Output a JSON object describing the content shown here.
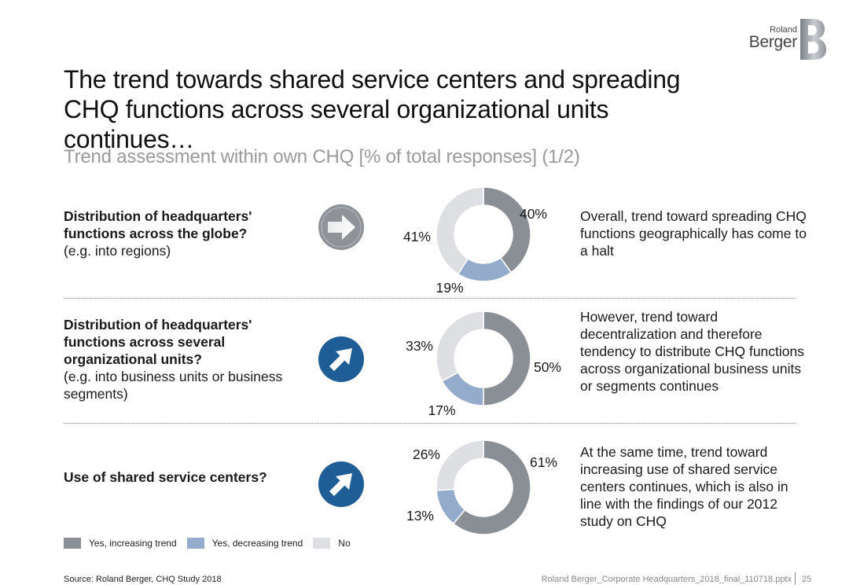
{
  "brand": {
    "line1": "Roland",
    "line2": "Berger"
  },
  "title": "The trend towards shared service centers and spreading CHQ functions across several organizational units continues…",
  "subtitle": "Trend assessment within own CHQ [% of total responses] (1/2)",
  "colors": {
    "increasing": "#8a8f95",
    "decreasing": "#94abcb",
    "no": "#dedfe2",
    "arrow_neutral": "#8f9398",
    "arrow_up": "#1e5d95"
  },
  "rows": [
    {
      "question_bold": "Distribution of headquarters' functions across the globe?",
      "question_note": "(e.g. into regions)",
      "icon": "arrow-right-icon",
      "description": "Overall, trend toward spreading CHQ functions geographically has come to a halt"
    },
    {
      "question_bold": "Distribution of headquarters' functions across several organizational units?",
      "question_note": "(e.g. into business units or business segments)",
      "icon": "arrow-up-right-icon",
      "description": "However, trend toward decentralization and therefore tendency to distribute CHQ functions across organizational business units or segments continues"
    },
    {
      "question_bold": "Use of shared service centers?",
      "question_note": "",
      "icon": "arrow-up-right-icon",
      "description": "At the same time, trend toward increasing use of shared service centers continues, which is also in line with the findings of our 2012 study on CHQ"
    }
  ],
  "chart_data": [
    {
      "type": "pie",
      "categories": [
        "Yes, increasing trend",
        "Yes, decreasing trend",
        "No"
      ],
      "values": [
        40,
        19,
        41
      ],
      "labels": [
        "40%",
        "19%",
        "41%"
      ]
    },
    {
      "type": "pie",
      "categories": [
        "Yes, increasing trend",
        "Yes, decreasing trend",
        "No"
      ],
      "values": [
        50,
        17,
        33
      ],
      "labels": [
        "50%",
        "17%",
        "33%"
      ]
    },
    {
      "type": "pie",
      "categories": [
        "Yes, increasing trend",
        "Yes, decreasing trend",
        "No"
      ],
      "values": [
        61,
        13,
        26
      ],
      "labels": [
        "61%",
        "13%",
        "26%"
      ]
    }
  ],
  "legend": [
    {
      "label": "Yes, increasing trend",
      "color": "#8a8f95"
    },
    {
      "label": "Yes, decreasing trend",
      "color": "#94abcb"
    },
    {
      "label": "No",
      "color": "#dedfe2"
    }
  ],
  "footer": {
    "source": "Source: Roland Berger, CHQ Study 2018",
    "file": "Roland Berger_Corporate Headquarters_2018_final_110718.pptx",
    "page": "25"
  }
}
